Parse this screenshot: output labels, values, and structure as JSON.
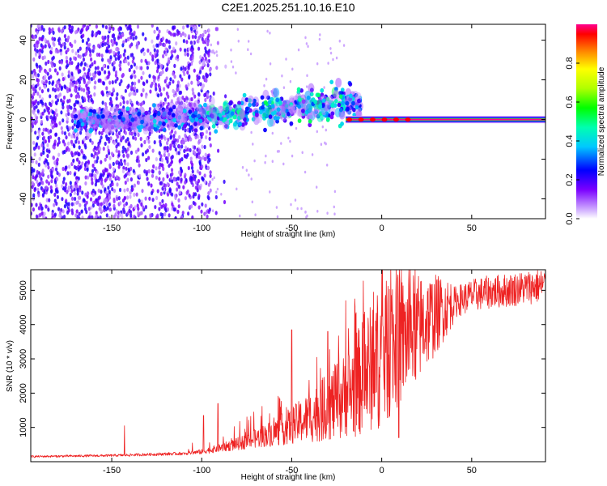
{
  "title": "C2E1.2025.251.10.16.E10",
  "chart_data": [
    {
      "type": "heatmap",
      "xlabel": "Height of straight line (km)",
      "ylabel": "Frequency (Hz)",
      "xlim": [
        -195,
        91
      ],
      "ylim": [
        -50,
        48
      ],
      "x_ticks": [
        -150,
        -100,
        -50,
        0,
        50
      ],
      "x_tick_labels": [
        "-150",
        "-100",
        "-50",
        "0",
        "50"
      ],
      "y_ticks": [
        -40,
        -20,
        0,
        20,
        40
      ],
      "y_tick_labels": [
        "-40",
        "-20",
        "0",
        "20",
        "40"
      ],
      "colorbar": {
        "label": "Normalized spectral amplitude",
        "range": [
          0,
          1
        ],
        "ticks": [
          0.0,
          0.2,
          0.4,
          0.6,
          0.8
        ],
        "tick_labels": [
          "0.0",
          "0.2",
          "0.4",
          "0.6",
          "0.8"
        ]
      },
      "features": {
        "carrier_line": {
          "frequency": 0,
          "x_start": -20,
          "x_end": 91,
          "amplitude": 1.0
        },
        "scatter_region": {
          "x_start": -195,
          "x_end": -95,
          "typical_amplitude": 0.15
        },
        "drift_band": {
          "x_start": -170,
          "x_end": -12,
          "freq_start": 0,
          "freq_end": 10,
          "typical_amplitude": 0.3
        }
      }
    },
    {
      "type": "line",
      "xlabel": "Height of straight line (km)",
      "ylabel": "SNR (10 * v/v)",
      "xlim": [
        -195,
        91
      ],
      "ylim": [
        0,
        5600
      ],
      "x_ticks": [
        -150,
        -100,
        -50,
        0,
        50
      ],
      "x_tick_labels": [
        "-150",
        "-100",
        "-50",
        "0",
        "50"
      ],
      "y_ticks": [
        1000,
        2000,
        3000,
        4000,
        5000
      ],
      "y_tick_labels": [
        "1000",
        "2000",
        "3000",
        "4000",
        "5000"
      ],
      "color": "#ee2222",
      "envelope_x": [
        -195,
        -150,
        -110,
        -100,
        -90,
        -80,
        -70,
        -60,
        -50,
        -40,
        -30,
        -20,
        -15,
        -10,
        -5,
        0,
        10,
        20,
        30,
        40,
        50,
        60,
        70,
        80,
        91
      ],
      "envelope_y": [
        150,
        180,
        240,
        290,
        400,
        520,
        680,
        850,
        1050,
        1300,
        1600,
        1900,
        2200,
        2500,
        2800,
        3100,
        3500,
        3900,
        4300,
        4650,
        4850,
        4950,
        5000,
        5080,
        5150
      ],
      "spikes": [
        {
          "x": -143,
          "y": 1050
        },
        {
          "x": -99,
          "y": 1350
        },
        {
          "x": -91,
          "y": 1700
        },
        {
          "x": -71,
          "y": 1450
        },
        {
          "x": -50,
          "y": 3850
        },
        {
          "x": -30,
          "y": 3800
        },
        {
          "x": -20,
          "y": 4700
        },
        {
          "x": -15,
          "y": 4750
        },
        {
          "x": -10,
          "y": 3900
        },
        {
          "x": 9,
          "y": 5450
        },
        {
          "x": 9.5,
          "y": 700
        }
      ]
    }
  ]
}
